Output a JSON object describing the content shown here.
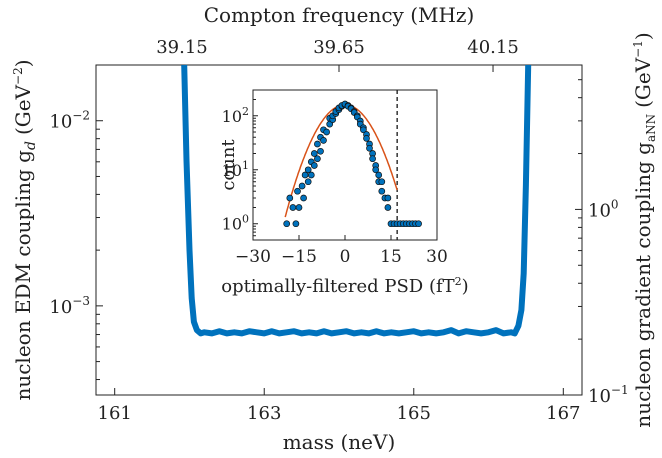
{
  "chart_data": [
    {
      "type": "line",
      "title": "",
      "xlabel": "mass (neV)",
      "ylabel": "nucleon EDM coupling g",
      "ylabel_sub": "d",
      "ylabel_unit": "(GeV",
      "ylabel_unit_exp": "−2",
      "ylabel_unit_close": ")",
      "top_xlabel": "Compton frequency (MHz)",
      "top_ticks": [
        "39.15",
        "39.65",
        "40.15"
      ],
      "top_tick_mass": [
        161.9,
        164.0,
        166.06
      ],
      "right_ylabel": "nucleon gradient coupling g",
      "right_ylabel_sub": "aNN",
      "right_ylabel_unit": "(GeV",
      "right_ylabel_unit_exp": "−1",
      "right_ylabel_unit_close": ")",
      "xlim": [
        160.75,
        167.25
      ],
      "ylim": [
        0.00033,
        0.02
      ],
      "yscale": "log",
      "x_ticks": [
        161,
        163,
        165,
        167
      ],
      "x_tick_labels": [
        "161",
        "163",
        "165",
        "167"
      ],
      "y_ticks": [
        0.001,
        0.01
      ],
      "y_tick_labels": [
        {
          "base": "10",
          "exp": "−3"
        },
        {
          "base": "10",
          "exp": "−2"
        }
      ],
      "right_ylim": [
        0.1,
        6.0
      ],
      "right_ticks": [
        0.1,
        1.0
      ],
      "right_tick_labels": [
        {
          "base": "10",
          "exp": "−1"
        },
        {
          "base": "10",
          "exp": "0"
        }
      ],
      "series": [
        {
          "x": [
            161.93,
            161.96,
            162.0,
            162.03,
            162.06,
            162.1,
            162.15,
            162.2,
            162.3,
            162.4,
            162.5,
            162.6,
            162.7,
            162.8,
            162.9,
            163.0,
            163.1,
            163.2,
            163.3,
            163.4,
            163.5,
            163.6,
            163.7,
            163.8,
            163.9,
            164.0,
            164.1,
            164.2,
            164.3,
            164.4,
            164.5,
            164.6,
            164.7,
            164.8,
            164.9,
            165.0,
            165.1,
            165.2,
            165.3,
            165.4,
            165.5,
            165.6,
            165.7,
            165.8,
            165.9,
            166.0,
            166.1,
            166.2,
            166.3,
            166.35,
            166.4,
            166.44,
            166.47,
            166.5,
            166.53
          ],
          "y": [
            0.02,
            0.0061,
            0.002,
            0.0011,
            0.00082,
            0.00074,
            0.00071,
            0.00072,
            0.00071,
            0.00073,
            0.00071,
            0.00072,
            0.00071,
            0.00073,
            0.00072,
            0.00071,
            0.00073,
            0.00071,
            0.00072,
            0.00073,
            0.00071,
            0.00072,
            0.00071,
            0.00073,
            0.00071,
            0.00072,
            0.00073,
            0.00071,
            0.00072,
            0.00071,
            0.00073,
            0.00071,
            0.00072,
            0.00071,
            0.00072,
            0.00073,
            0.00071,
            0.00072,
            0.00071,
            0.00072,
            0.00074,
            0.00071,
            0.00073,
            0.00072,
            0.00071,
            0.00072,
            0.00074,
            0.00071,
            0.00072,
            0.00071,
            0.00078,
            0.00095,
            0.0015,
            0.0045,
            0.02
          ],
          "color": "#0072BD"
        }
      ],
      "grid": false
    },
    {
      "type": "scatter",
      "title": "",
      "xlabel": "optimally-filtered PSD (fT",
      "xlabel_exp": "2",
      "xlabel_close": ")",
      "ylabel": "count",
      "xlim": [
        -30,
        30
      ],
      "ylim": [
        0.5,
        300
      ],
      "yscale": "log",
      "x_ticks": [
        -30,
        -15,
        0,
        15,
        30
      ],
      "x_tick_labels": [
        "−30",
        "−15",
        "0",
        "15",
        "30"
      ],
      "y_ticks": [
        1,
        10,
        100
      ],
      "y_tick_labels": [
        {
          "base": "10",
          "exp": "0"
        },
        {
          "base": "10",
          "exp": "1"
        },
        {
          "base": "10",
          "exp": "2"
        }
      ],
      "threshold_x": 17,
      "points": {
        "x": [
          -19,
          -18,
          -17,
          -16,
          -15.5,
          -15,
          -14,
          -13.5,
          -13,
          -12,
          -12,
          -11,
          -11,
          -10,
          -10,
          -9,
          -9,
          -8,
          -8,
          -7,
          -7,
          -6,
          -5,
          -5,
          -4,
          -4,
          -3,
          -3,
          -2,
          -2,
          -1,
          -1,
          0,
          0,
          1,
          1,
          2,
          2,
          3,
          3,
          4,
          4,
          5,
          5,
          6,
          6,
          7,
          7,
          8,
          8,
          9,
          9,
          10,
          10,
          11,
          11,
          12,
          12,
          13,
          14,
          14,
          15,
          16,
          17,
          18,
          19,
          20,
          21,
          22,
          23,
          24
        ],
        "y": [
          1,
          3,
          2,
          1,
          4,
          2,
          5,
          3,
          8,
          6,
          10,
          8,
          14,
          12,
          20,
          16,
          30,
          22,
          40,
          35,
          55,
          50,
          70,
          90,
          85,
          100,
          110,
          120,
          130,
          140,
          150,
          155,
          160,
          165,
          155,
          150,
          140,
          135,
          120,
          115,
          100,
          95,
          80,
          70,
          60,
          55,
          45,
          38,
          30,
          25,
          20,
          16,
          12,
          10,
          8,
          6,
          6,
          4,
          3,
          3,
          2,
          1,
          1,
          1,
          1,
          1,
          1,
          1,
          1,
          1,
          1
        ],
        "color": "#0072BD"
      },
      "fit": {
        "type": "gaussian",
        "amplitude": 160,
        "mean": 0,
        "sigma": 6.3,
        "color": "#D95319"
      }
    }
  ]
}
